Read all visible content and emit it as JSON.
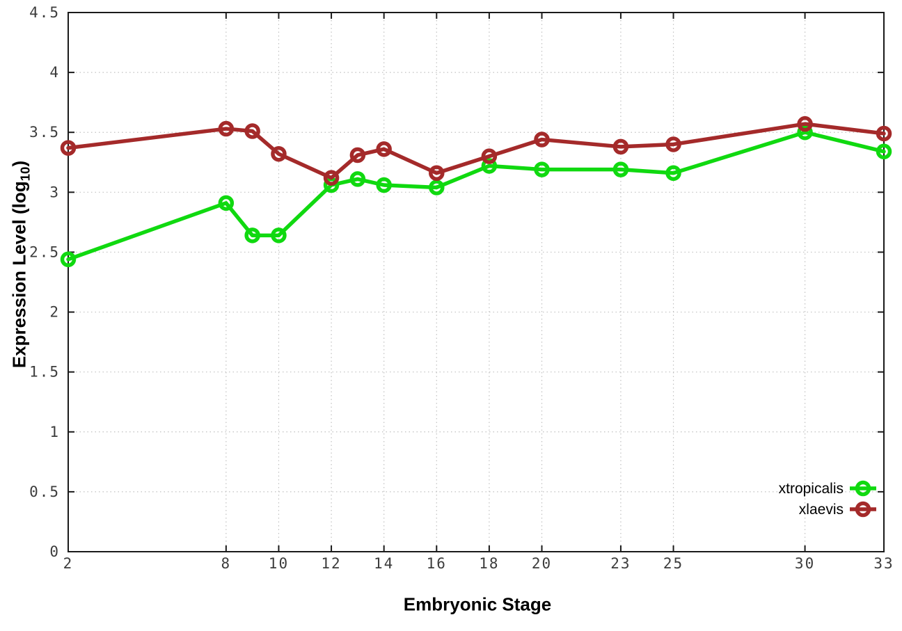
{
  "chart_data": {
    "type": "line",
    "title": "",
    "xlabel": "Embryonic Stage",
    "ylabel": "Expression Level (log10)",
    "ylabel_parts": {
      "main": "Expression Level (log",
      "sub": "10",
      "close": ")"
    },
    "x": [
      2,
      8,
      9,
      10,
      12,
      13,
      14,
      16,
      18,
      20,
      23,
      25,
      30,
      33
    ],
    "x_tick_labels": [
      2,
      8,
      10,
      12,
      14,
      16,
      18,
      20,
      23,
      25,
      30,
      33
    ],
    "y_tick_labels": [
      0,
      0.5,
      1,
      1.5,
      2,
      2.5,
      3,
      3.5,
      4,
      4.5
    ],
    "xlim": [
      2,
      33
    ],
    "ylim": [
      0,
      4.5
    ],
    "grid": true,
    "legend_position": "bottom-right",
    "series": [
      {
        "name": "xtropicalis",
        "color": "#10d910",
        "values": [
          2.44,
          2.91,
          2.64,
          2.64,
          3.06,
          3.11,
          3.06,
          3.04,
          3.22,
          3.19,
          3.19,
          3.16,
          3.5,
          3.34
        ]
      },
      {
        "name": "xlaevis",
        "color": "#a42a2a",
        "values": [
          3.37,
          3.53,
          3.51,
          3.32,
          3.12,
          3.31,
          3.36,
          3.16,
          3.3,
          3.44,
          3.38,
          3.4,
          3.57,
          3.49
        ]
      }
    ],
    "style_colors": {
      "grid": "#c0c0c0",
      "border": "#1a1a1a",
      "tick_text": "#3c3c3c",
      "legend_text": "#000000"
    }
  }
}
